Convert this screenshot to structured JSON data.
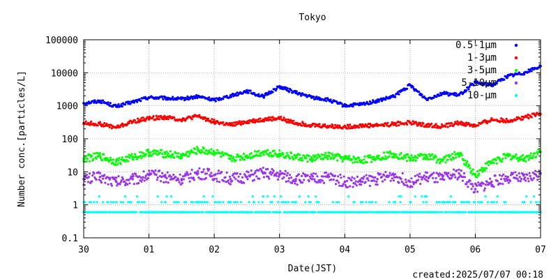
{
  "chart_data": {
    "type": "scatter",
    "title": "Tokyo",
    "xlabel": "Date(JST)",
    "ylabel": "Number conc.[particles/L]",
    "footer": "created:2025/07/07 00:18",
    "yscale": "log",
    "ylim": [
      0.1,
      100000
    ],
    "xlim": [
      "2025-06-30",
      "2025-07-07"
    ],
    "x_tick_labels": [
      "30",
      "01",
      "02",
      "03",
      "04",
      "05",
      "06",
      "07"
    ],
    "y_tick_labels": [
      "0.1",
      "1",
      "10",
      "100",
      "1000",
      "10000",
      "100000"
    ],
    "grid": true,
    "legend_position": "top-right",
    "series": [
      {
        "name": "0.5-1μm",
        "color": "#0000ff",
        "x": [
          "06-30 00:00",
          "06-30 06:00",
          "06-30 12:00",
          "06-30 18:00",
          "07-01 00:00",
          "07-01 06:00",
          "07-01 12:00",
          "07-01 18:00",
          "07-02 00:00",
          "07-02 06:00",
          "07-02 12:00",
          "07-02 18:00",
          "07-03 00:00",
          "07-03 06:00",
          "07-03 12:00",
          "07-03 18:00",
          "07-04 00:00",
          "07-04 06:00",
          "07-04 12:00",
          "07-04 18:00",
          "07-05 00:00",
          "07-05 06:00",
          "07-05 12:00",
          "07-05 18:00",
          "07-06 00:00",
          "07-06 06:00",
          "07-06 12:00",
          "07-06 18:00",
          "07-07 00:00"
        ],
        "y": [
          1200,
          1400,
          950,
          1300,
          1800,
          1700,
          1600,
          1900,
          1500,
          2000,
          2800,
          1900,
          3800,
          2500,
          1800,
          1500,
          1000,
          1100,
          1400,
          1900,
          4200,
          1600,
          2400,
          2100,
          5000,
          4200,
          8000,
          10000,
          16000
        ]
      },
      {
        "name": "1-3μm",
        "color": "#ff0000",
        "x": [
          "06-30 00:00",
          "06-30 06:00",
          "06-30 12:00",
          "06-30 18:00",
          "07-01 00:00",
          "07-01 06:00",
          "07-01 12:00",
          "07-01 18:00",
          "07-02 00:00",
          "07-02 06:00",
          "07-02 12:00",
          "07-02 18:00",
          "07-03 00:00",
          "07-03 06:00",
          "07-03 12:00",
          "07-03 18:00",
          "07-04 00:00",
          "07-04 06:00",
          "07-04 12:00",
          "07-04 18:00",
          "07-05 00:00",
          "07-05 06:00",
          "07-05 12:00",
          "07-05 18:00",
          "07-06 00:00",
          "07-06 06:00",
          "07-06 12:00",
          "07-06 18:00",
          "07-07 00:00"
        ],
        "y": [
          300,
          280,
          220,
          330,
          420,
          450,
          380,
          480,
          330,
          260,
          330,
          380,
          420,
          300,
          260,
          240,
          230,
          250,
          260,
          280,
          310,
          260,
          240,
          300,
          250,
          380,
          350,
          450,
          560
        ]
      },
      {
        "name": "3-5μm",
        "color": "#00ff00",
        "x": [
          "06-30 00:00",
          "06-30 06:00",
          "06-30 12:00",
          "06-30 18:00",
          "07-01 00:00",
          "07-01 06:00",
          "07-01 12:00",
          "07-01 18:00",
          "07-02 00:00",
          "07-02 06:00",
          "07-02 12:00",
          "07-02 18:00",
          "07-03 00:00",
          "07-03 06:00",
          "07-03 12:00",
          "07-03 18:00",
          "07-04 00:00",
          "07-04 06:00",
          "07-04 12:00",
          "07-04 18:00",
          "07-05 00:00",
          "07-05 06:00",
          "07-05 12:00",
          "07-05 18:00",
          "07-06 00:00",
          "07-06 06:00",
          "07-06 12:00",
          "07-06 18:00",
          "07-07 00:00"
        ],
        "y": [
          25,
          30,
          20,
          28,
          38,
          35,
          30,
          45,
          40,
          25,
          30,
          40,
          35,
          28,
          25,
          30,
          25,
          22,
          28,
          35,
          25,
          30,
          22,
          35,
          8,
          20,
          30,
          25,
          40
        ]
      },
      {
        "name": "5-10μm",
        "color": "#9933ee",
        "x": [
          "06-30 00:00",
          "06-30 06:00",
          "06-30 12:00",
          "06-30 18:00",
          "07-01 00:00",
          "07-01 06:00",
          "07-01 12:00",
          "07-01 18:00",
          "07-02 00:00",
          "07-02 06:00",
          "07-02 12:00",
          "07-02 18:00",
          "07-03 00:00",
          "07-03 06:00",
          "07-03 12:00",
          "07-03 18:00",
          "07-04 00:00",
          "07-04 06:00",
          "07-04 12:00",
          "07-04 18:00",
          "07-05 00:00",
          "07-05 06:00",
          "07-05 12:00",
          "07-05 18:00",
          "07-06 00:00",
          "07-06 06:00",
          "07-06 12:00",
          "07-06 18:00",
          "07-07 00:00"
        ],
        "y": [
          6,
          7,
          5,
          6,
          8,
          7,
          6,
          9,
          8,
          6,
          7,
          9,
          8,
          6,
          6,
          7,
          5,
          5,
          6,
          8,
          5,
          7,
          6,
          9,
          3,
          5,
          7,
          6,
          9
        ]
      },
      {
        "name": "10-μm",
        "color": "#00ffff",
        "x": [
          "06-30 00:00",
          "06-30 06:00",
          "06-30 12:00",
          "06-30 18:00",
          "07-01 00:00",
          "07-01 06:00",
          "07-01 12:00",
          "07-01 18:00",
          "07-02 00:00",
          "07-02 06:00",
          "07-02 12:00",
          "07-02 18:00",
          "07-03 00:00",
          "07-03 06:00",
          "07-03 12:00",
          "07-03 18:00",
          "07-04 00:00",
          "07-04 06:00",
          "07-04 12:00",
          "07-04 18:00",
          "07-05 00:00",
          "07-05 06:00",
          "07-05 12:00",
          "07-05 18:00",
          "07-06 00:00",
          "07-06 06:00",
          "07-06 12:00",
          "07-06 18:00",
          "07-07 00:00"
        ],
        "y": [
          0.6,
          0.6,
          1.2,
          0.6,
          0.6,
          1.2,
          0.6,
          1.2,
          0.6,
          1.2,
          0.6,
          1.8,
          0.6,
          1.2,
          0.6,
          0.6,
          0.6,
          1.2,
          0.6,
          0.6,
          0.6,
          1.8,
          1.2,
          0.6,
          0.6,
          1.2,
          0.6,
          1.2,
          0.6
        ]
      }
    ]
  }
}
